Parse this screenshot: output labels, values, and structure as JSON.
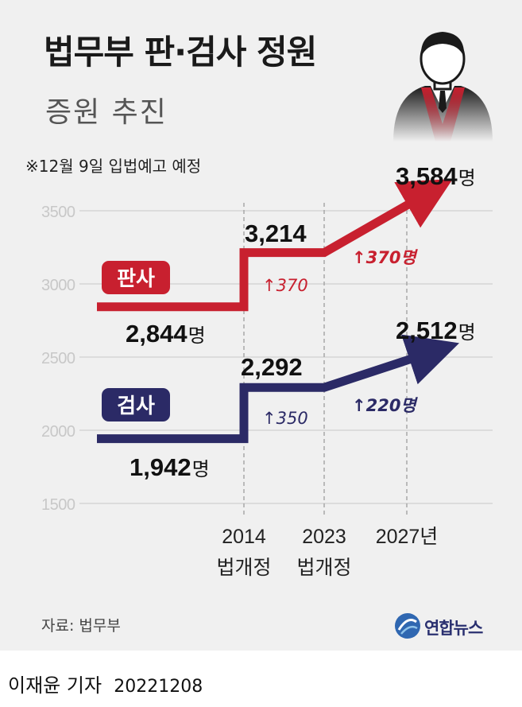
{
  "header": {
    "title": "법무부 판·검사 정원",
    "subtitle": "증원 추진",
    "note": "※12월 9일 입법예고 예정"
  },
  "footer": {
    "source": "자료: 법무부",
    "brand": "연합뉴스",
    "reporter": "이재윤 기자",
    "date": "20221208"
  },
  "icons": {
    "avatar": "person-in-robe-icon",
    "brand": "yonhap-logo-icon"
  },
  "colors": {
    "judge": "#c8202f",
    "prosecutor": "#2b2a66",
    "grid": "#d6d6d6",
    "background": "#f0f0f0"
  },
  "chart_data": {
    "type": "line",
    "title": "법무부 판·검사 정원",
    "x_ticks": [
      {
        "x": 2014,
        "line1": "2014",
        "line2": "법개정"
      },
      {
        "x": 2023,
        "line1": "2023",
        "line2": "법개정"
      },
      {
        "x": 2027,
        "line1": "2027년",
        "line2": ""
      }
    ],
    "y_ticks": [
      "1500",
      "2000",
      "2500",
      "3000",
      "3500"
    ],
    "ylim": [
      1500,
      3500
    ],
    "series": [
      {
        "name": "판사",
        "color": "#c8202f",
        "steps": [
          {
            "year": "before 2014",
            "value": 2844
          },
          {
            "year": 2014,
            "value": 3214
          },
          {
            "year": 2027,
            "value": 3584
          }
        ],
        "labels": {
          "start": "2,844",
          "mid": "3,214",
          "end": "3,584",
          "unit": "명"
        },
        "increase_labels": [
          "↑370",
          "↑370명"
        ]
      },
      {
        "name": "검사",
        "color": "#2b2a66",
        "steps": [
          {
            "year": "before 2014",
            "value": 1942
          },
          {
            "year": 2014,
            "value": 2292
          },
          {
            "year": 2027,
            "value": 2512
          }
        ],
        "labels": {
          "start": "1,942",
          "mid": "2,292",
          "end": "2,512",
          "unit": "명"
        },
        "increase_labels": [
          "↑350",
          "↑220명"
        ]
      }
    ]
  }
}
